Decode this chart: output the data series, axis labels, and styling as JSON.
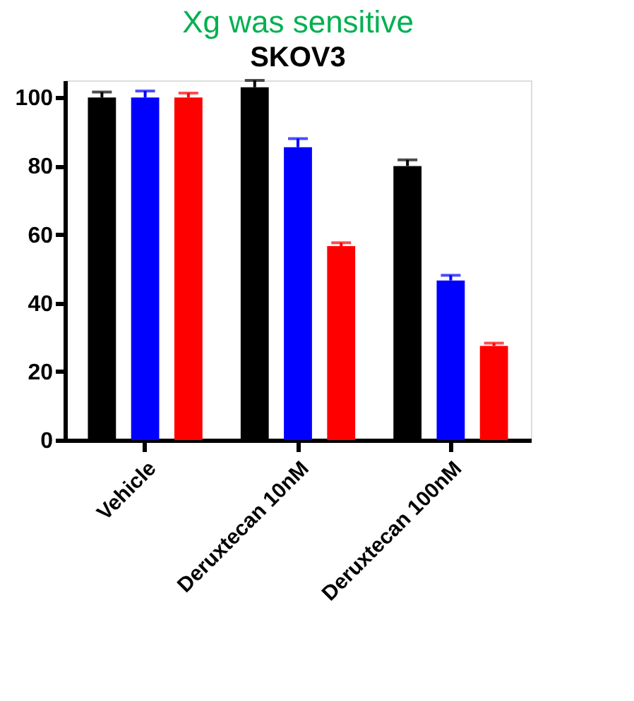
{
  "chart_data": {
    "type": "bar",
    "title": "Xg was sensitive",
    "subtitle": "SKOV3",
    "categories": [
      "Vehicle",
      "Deruxtecan 10nM",
      "Deruxtecan 100nM"
    ],
    "series": [
      {
        "color": "#000000",
        "values": [
          100,
          103,
          80
        ],
        "errors": [
          1.6,
          2,
          1.8
        ]
      },
      {
        "color": "#0000ff",
        "values": [
          100,
          85.5,
          46.6
        ],
        "errors": [
          1.9,
          2.5,
          1.5
        ]
      },
      {
        "color": "#ff0000",
        "values": [
          100,
          56.6,
          27.5
        ],
        "errors": [
          1.3,
          1,
          0.8
        ]
      }
    ],
    "ylim": [
      0,
      105
    ],
    "yticks": [
      0,
      20,
      40,
      60,
      80,
      100
    ],
    "grid": false,
    "legend": false
  }
}
